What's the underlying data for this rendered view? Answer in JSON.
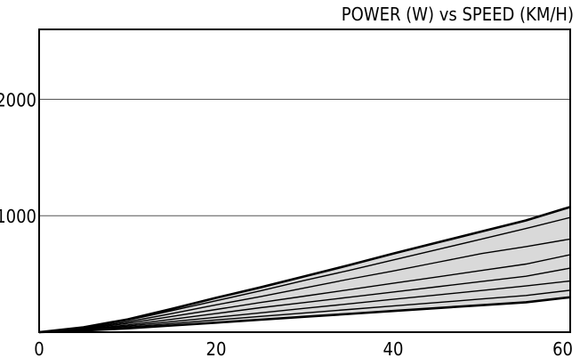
{
  "chart_data": {
    "type": "line",
    "title": "POWER (W) vs SPEED (KM/H)",
    "xlabel": "",
    "ylabel": "",
    "xlim": [
      0,
      60
    ],
    "ylim": [
      0,
      2600
    ],
    "x_ticks": [
      0,
      20,
      40,
      60
    ],
    "y_ticks": [
      1000,
      2000
    ],
    "y_gridlines": [
      1000,
      2000
    ],
    "grid": "horizontal",
    "band_fill": "shaded between lowest and highest curve",
    "colors": {
      "band": "#d9d9d9",
      "lines": "#000000"
    },
    "x": [
      0,
      5,
      10,
      15,
      20,
      25,
      30,
      35,
      40,
      45,
      50,
      55,
      60
    ],
    "series": [
      {
        "values": [
          0,
          38,
          102,
          185,
          270,
          355,
          445,
          530,
          620,
          710,
          800,
          890,
          985
        ]
      },
      {
        "values": [
          0,
          33,
          88,
          160,
          235,
          305,
          380,
          455,
          525,
          600,
          675,
          735,
          800
        ]
      },
      {
        "values": [
          0,
          28,
          75,
          135,
          195,
          255,
          310,
          365,
          420,
          475,
          530,
          585,
          665
        ]
      },
      {
        "values": [
          0,
          24,
          62,
          110,
          160,
          210,
          255,
          300,
          345,
          390,
          435,
          480,
          550
        ]
      },
      {
        "values": [
          0,
          20,
          52,
          90,
          128,
          166,
          205,
          243,
          282,
          320,
          358,
          397,
          440
        ]
      },
      {
        "values": [
          0,
          17,
          43,
          74,
          105,
          135,
          165,
          195,
          225,
          255,
          285,
          315,
          360
        ]
      },
      {
        "values": [
          0,
          14,
          33,
          57,
          82,
          107,
          132,
          157,
          182,
          207,
          232,
          257,
          300
        ]
      },
      {
        "values": [
          0,
          42,
          110,
          200,
          295,
          385,
          480,
          575,
          675,
          770,
          865,
          960,
          1075
        ]
      }
    ]
  }
}
